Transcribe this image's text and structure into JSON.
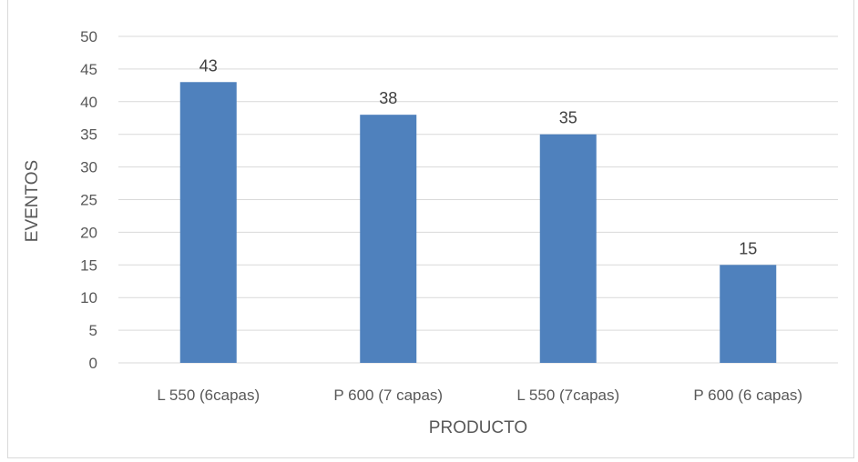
{
  "chart_data": {
    "type": "bar",
    "categories": [
      "L 550 (6capas)",
      "P 600 (7 capas)",
      "L 550 (7capas)",
      "P 600 (6 capas)"
    ],
    "values": [
      43,
      38,
      35,
      15
    ],
    "title": "",
    "xlabel": "PRODUCTO",
    "ylabel": "EVENTOS",
    "ylim": [
      0,
      50
    ],
    "yticks": [
      0,
      5,
      10,
      15,
      20,
      25,
      30,
      35,
      40,
      45,
      50
    ],
    "grid": true,
    "data_labels": true,
    "bar_color": "#4f81bd",
    "grid_color": "#d9d9d9"
  }
}
